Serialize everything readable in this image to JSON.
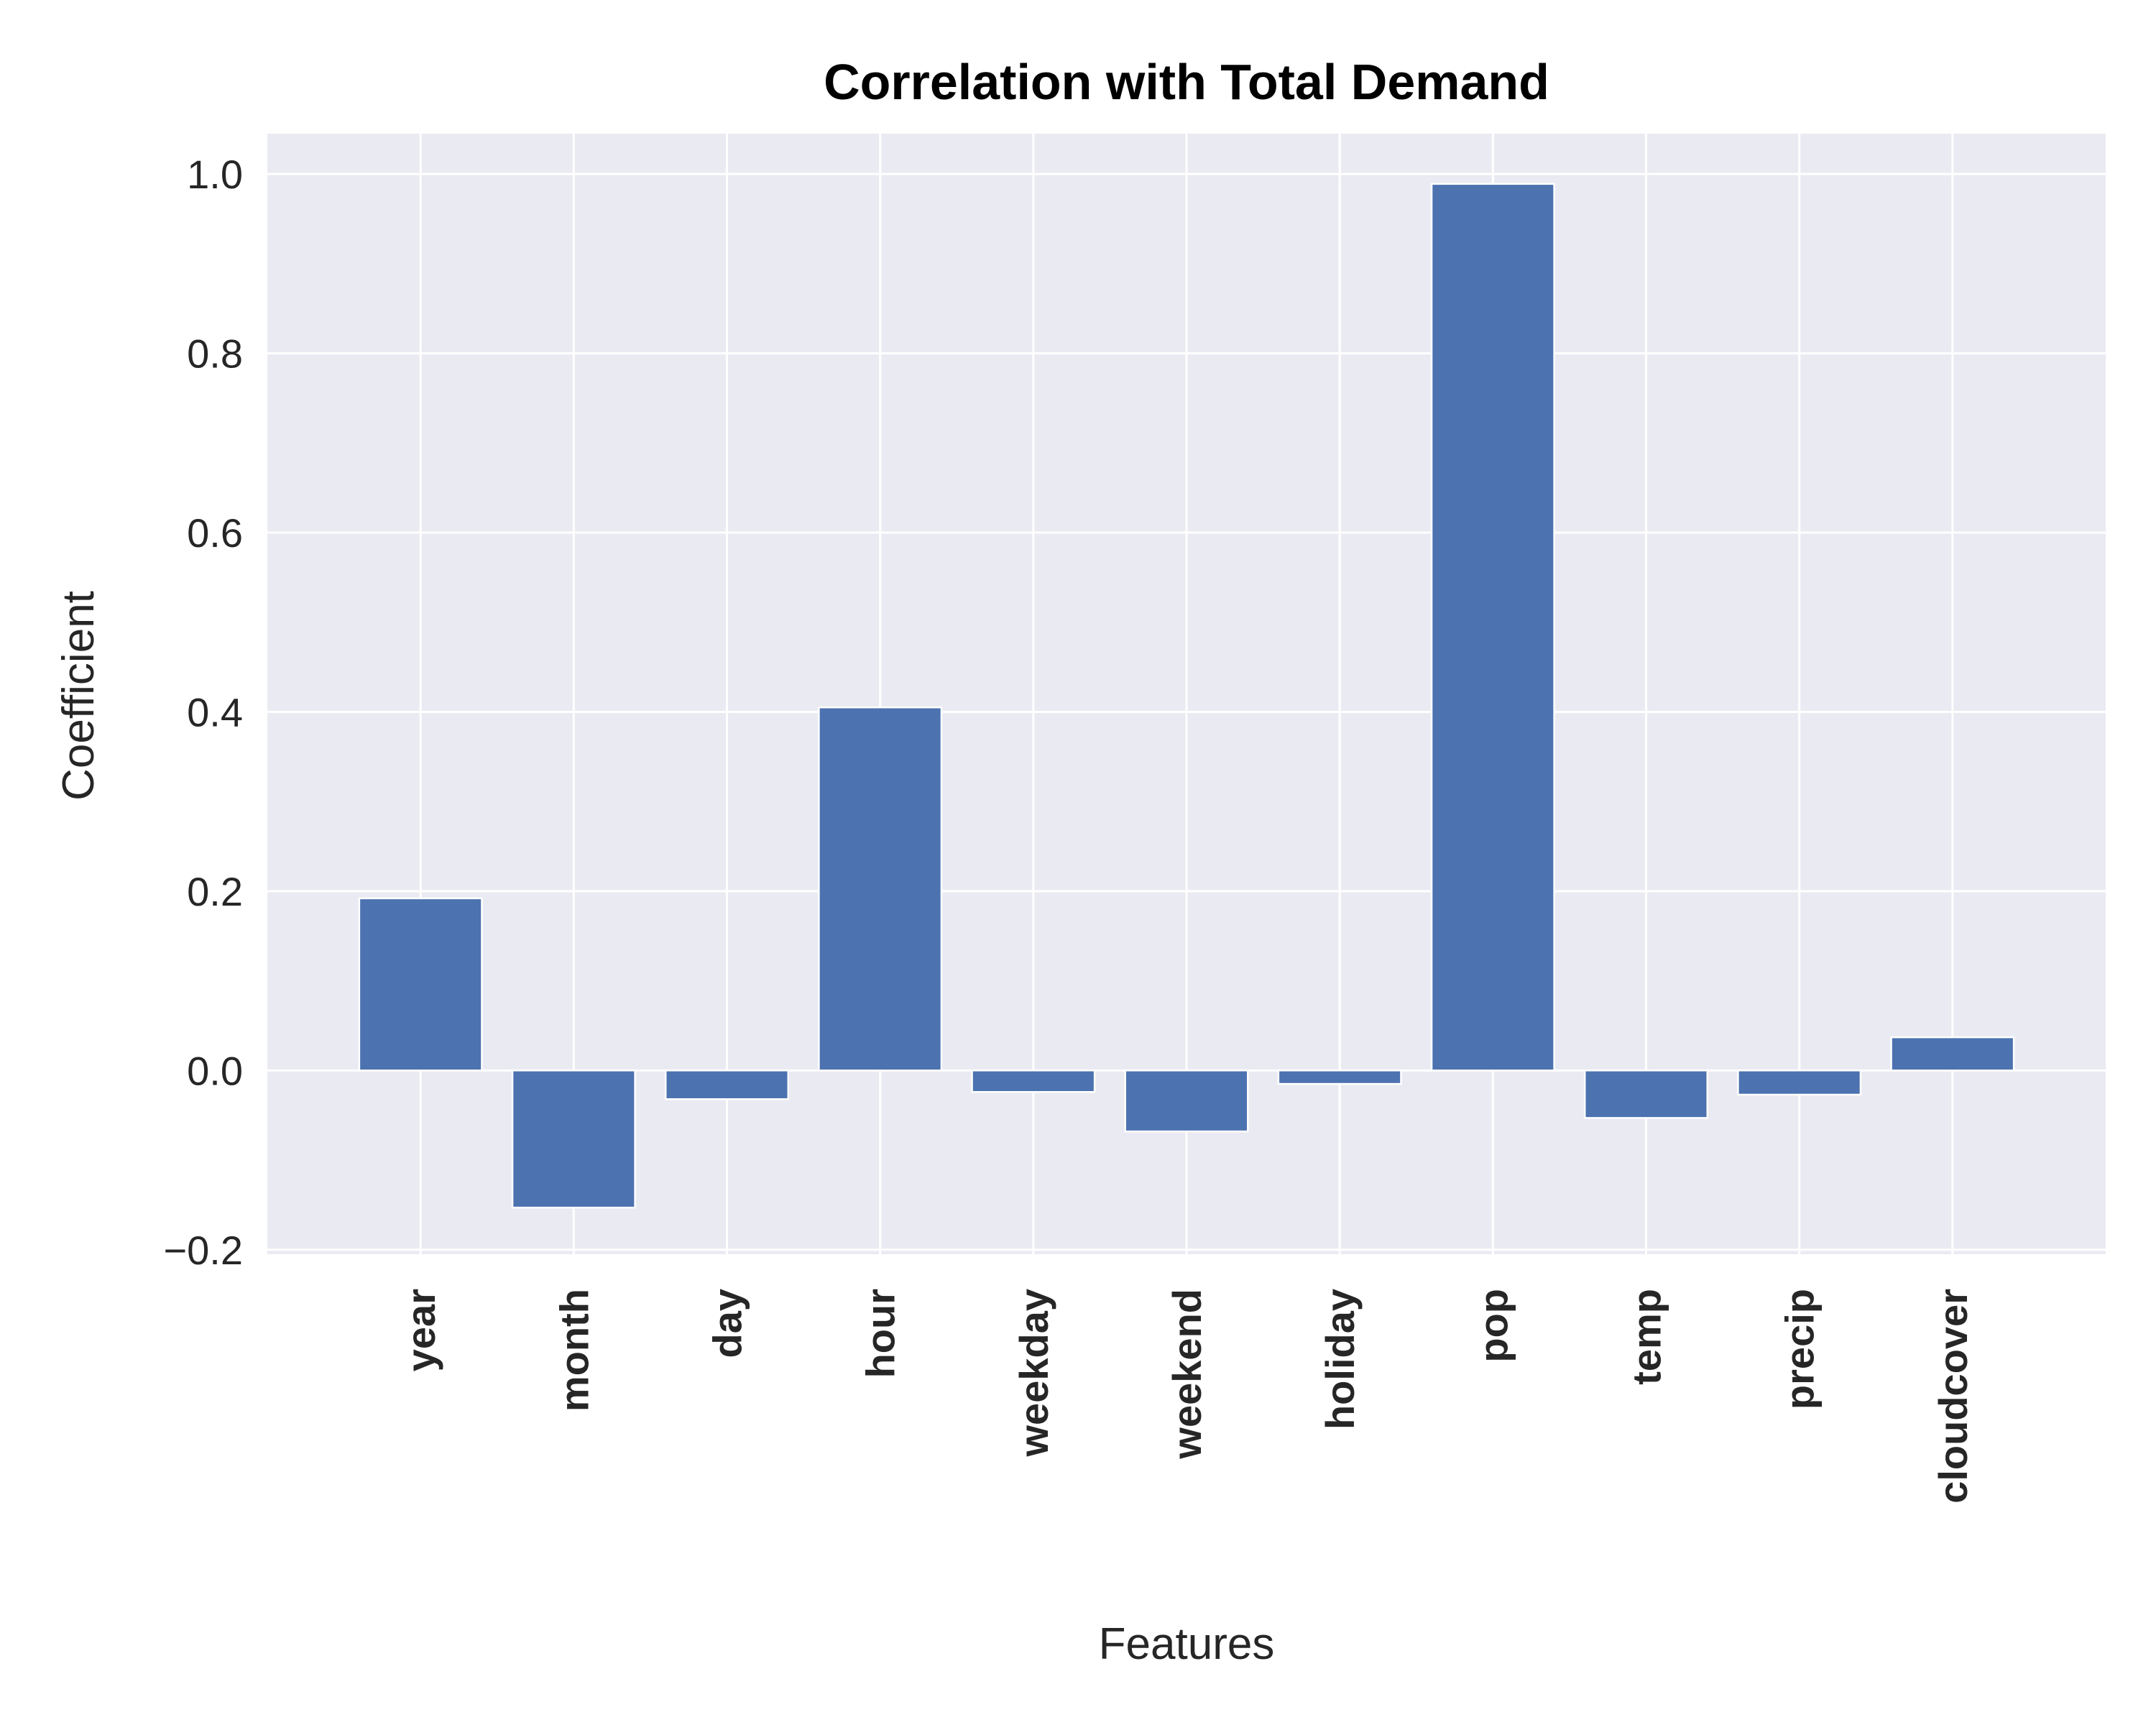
{
  "chart_data": {
    "type": "bar",
    "title": "Correlation with Total Demand",
    "xlabel": "Features",
    "ylabel": "Coefficient",
    "categories": [
      "year",
      "month",
      "day",
      "hour",
      "weekday",
      "weekend",
      "holiday",
      "pop",
      "temp",
      "precip",
      "cloudcover"
    ],
    "values": [
      0.192,
      -0.153,
      -0.032,
      0.405,
      -0.024,
      -0.068,
      -0.015,
      0.989,
      -0.053,
      -0.027,
      0.037
    ],
    "ylim": [
      -0.205,
      1.045
    ],
    "yticks": [
      -0.2,
      0.0,
      0.2,
      0.4,
      0.6,
      0.8,
      1.0
    ],
    "ytick_labels": [
      "−0.2",
      "0.0",
      "0.2",
      "0.4",
      "0.6",
      "0.8",
      "1.0"
    ],
    "grid": true,
    "colors": {
      "bar": "#4c72b0",
      "plot_background": "#eaeaf2",
      "grid": "#ffffff"
    }
  }
}
